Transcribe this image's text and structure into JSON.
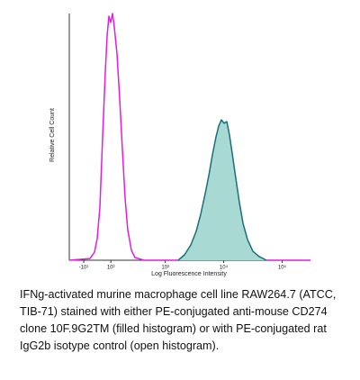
{
  "chart_data": {
    "type": "line",
    "xlabel": "Log Fluorescence Intensity",
    "ylabel": "Relative Cell Count",
    "xscale": "biexponential",
    "xlim": [
      -66,
      306000
    ],
    "xticks": [
      {
        "value": -10,
        "label": "-10¹"
      },
      {
        "value": 100,
        "label": "10²"
      },
      {
        "value": 1000,
        "label": "10³"
      },
      {
        "value": 10000,
        "label": "10⁴"
      },
      {
        "value": 100000,
        "label": "10⁵"
      }
    ],
    "ylim": [
      0,
      100
    ],
    "series": [
      {
        "color": "#e31ce3",
        "filled": false,
        "x": [
          -66,
          12.4,
          28.8,
          39,
          49.7,
          61,
          72.8,
          81.3,
          90.1,
          99.4,
          109,
          119,
          136,
          154,
          175,
          196,
          219,
          256,
          297,
          428,
          306000
        ],
        "values": [
          0,
          0.7,
          3.3,
          8.8,
          21.5,
          50.7,
          76.3,
          90.9,
          98.9,
          96.4,
          100,
          94.5,
          83.6,
          65.3,
          43.4,
          25.2,
          12.4,
          4,
          1.1,
          0,
          0
        ]
      },
      {
        "color": "#17707a",
        "fill_color": "#a9d9d3",
        "filled": true,
        "x": [
          1666,
          2137,
          2740,
          3391,
          4046,
          4829,
          5567,
          6417,
          7398,
          8224,
          9153,
          10174,
          11313,
          12591,
          13995,
          16130,
          18594,
          21429,
          25587,
          31662,
          40572,
          53892
        ],
        "values": [
          0,
          2.2,
          6.2,
          11.7,
          18.6,
          27,
          34.3,
          42.7,
          50,
          54.4,
          56.9,
          55.5,
          56.2,
          50.7,
          43.4,
          33.2,
          23.4,
          15,
          8.4,
          3.6,
          1.5,
          0
        ]
      }
    ]
  },
  "caption": "IFNg-activated murine macrophage cell line RAW264.7 (ATCC, TIB-71) stained with either PE-conjugated anti-mouse CD274 clone 10F.9G2TM (filled histogram) or with PE-conjugated rat IgG2b isotype control (open histogram)."
}
